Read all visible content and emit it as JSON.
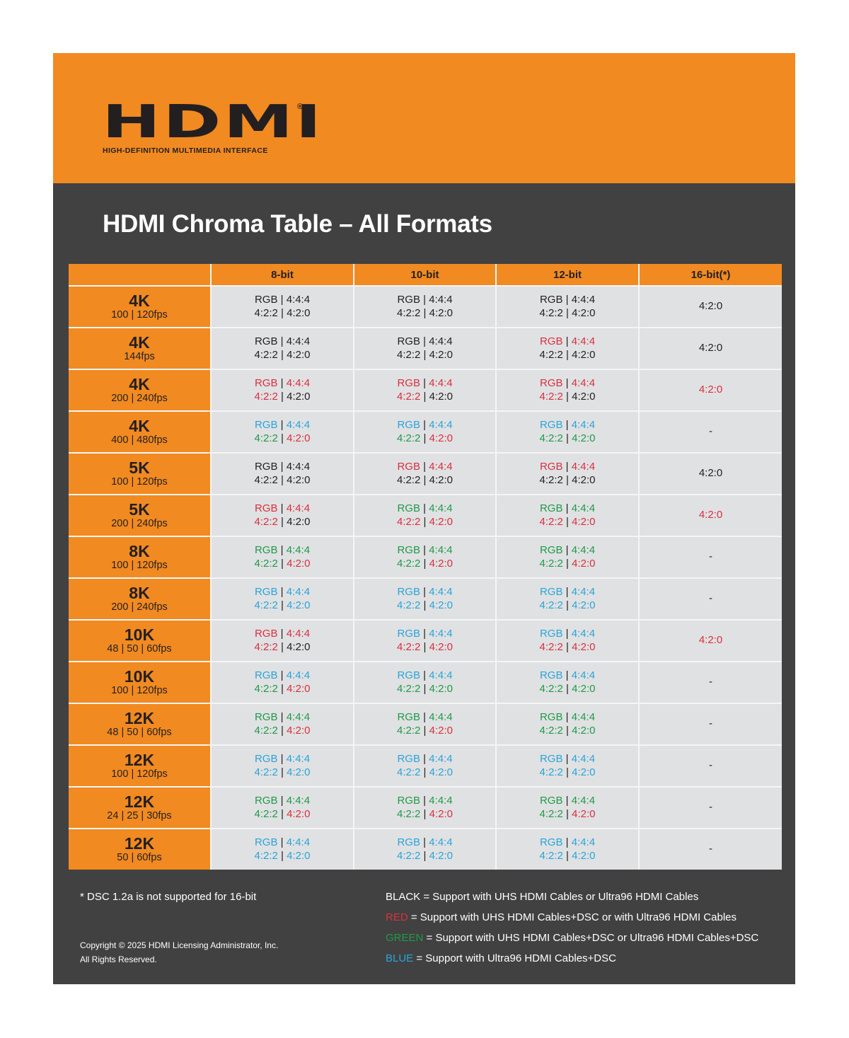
{
  "brand": {
    "logo_text": "HDMI",
    "registered_mark": "®",
    "tagline": "HIGH-DEFINITION MULTIMEDIA INTERFACE",
    "color": "#f18a21"
  },
  "title": "HDMI Chroma Table – All Formats",
  "colors": {
    "black": "#231f20",
    "red": "#d9303e",
    "green": "#1f9a48",
    "blue": "#2aa4d8",
    "orange": "#f18a21",
    "panel": "#414141",
    "cell": "#e0e1e3"
  },
  "table": {
    "headers": [
      "",
      "8-bit",
      "10-bit",
      "12-bit",
      "16-bit(*)"
    ],
    "labels": {
      "rgb": "RGB",
      "c444": "4:4:4",
      "c422": "4:2:2",
      "c420": "4:2:0",
      "sep": "|"
    },
    "rows": [
      {
        "res": "4K",
        "fps": "100 | 120fps",
        "b8": [
          "black",
          "black",
          "black",
          "black"
        ],
        "b10": [
          "black",
          "black",
          "black",
          "black"
        ],
        "b12": [
          "black",
          "black",
          "black",
          "black"
        ],
        "b16": {
          "text": "4:2:0",
          "color": "black"
        }
      },
      {
        "res": "4K",
        "fps": "144fps",
        "b8": [
          "black",
          "black",
          "black",
          "black"
        ],
        "b10": [
          "black",
          "black",
          "black",
          "black"
        ],
        "b12": [
          "red",
          "red",
          "black",
          "black"
        ],
        "b16": {
          "text": "4:2:0",
          "color": "black"
        }
      },
      {
        "res": "4K",
        "fps": "200 | 240fps",
        "b8": [
          "red",
          "red",
          "red",
          "black"
        ],
        "b10": [
          "red",
          "red",
          "red",
          "black"
        ],
        "b12": [
          "red",
          "red",
          "red",
          "black"
        ],
        "b16": {
          "text": "4:2:0",
          "color": "red"
        }
      },
      {
        "res": "4K",
        "fps": "400 | 480fps",
        "b8": [
          "blue",
          "blue",
          "green",
          "red"
        ],
        "b10": [
          "blue",
          "blue",
          "green",
          "red"
        ],
        "b12": [
          "blue",
          "blue",
          "green",
          "green"
        ],
        "b16": {
          "text": "-",
          "color": "black"
        }
      },
      {
        "res": "5K",
        "fps": "100 | 120fps",
        "b8": [
          "black",
          "black",
          "black",
          "black"
        ],
        "b10": [
          "red",
          "red",
          "black",
          "black"
        ],
        "b12": [
          "red",
          "red",
          "black",
          "black"
        ],
        "b16": {
          "text": "4:2:0",
          "color": "black"
        }
      },
      {
        "res": "5K",
        "fps": "200 | 240fps",
        "b8": [
          "red",
          "red",
          "red",
          "black"
        ],
        "b10": [
          "green",
          "green",
          "red",
          "red"
        ],
        "b12": [
          "green",
          "green",
          "red",
          "red"
        ],
        "b16": {
          "text": "4:2:0",
          "color": "red"
        }
      },
      {
        "res": "8K",
        "fps": "100 | 120fps",
        "b8": [
          "green",
          "green",
          "green",
          "red"
        ],
        "b10": [
          "green",
          "green",
          "green",
          "red"
        ],
        "b12": [
          "green",
          "green",
          "green",
          "red"
        ],
        "b16": {
          "text": "-",
          "color": "black"
        }
      },
      {
        "res": "8K",
        "fps": "200 | 240fps",
        "b8": [
          "blue",
          "blue",
          "blue",
          "blue"
        ],
        "b10": [
          "blue",
          "blue",
          "blue",
          "blue"
        ],
        "b12": [
          "blue",
          "blue",
          "blue",
          "blue"
        ],
        "b16": {
          "text": "-",
          "color": "black"
        }
      },
      {
        "res": "10K",
        "fps": "48 | 50 | 60fps",
        "b8": [
          "red",
          "red",
          "red",
          "black"
        ],
        "b10": [
          "blue",
          "blue",
          "red",
          "red"
        ],
        "b12": [
          "blue",
          "blue",
          "red",
          "red"
        ],
        "b16": {
          "text": "4:2:0",
          "color": "red"
        }
      },
      {
        "res": "10K",
        "fps": "100 | 120fps",
        "b8": [
          "blue",
          "blue",
          "green",
          "red"
        ],
        "b10": [
          "blue",
          "blue",
          "green",
          "green"
        ],
        "b12": [
          "blue",
          "blue",
          "green",
          "green"
        ],
        "b16": {
          "text": "-",
          "color": "black"
        }
      },
      {
        "res": "12K",
        "fps": "48 | 50 | 60fps",
        "b8": [
          "green",
          "green",
          "green",
          "red"
        ],
        "b10": [
          "green",
          "green",
          "green",
          "red"
        ],
        "b12": [
          "green",
          "green",
          "green",
          "green"
        ],
        "b16": {
          "text": "-",
          "color": "black"
        }
      },
      {
        "res": "12K",
        "fps": "100 | 120fps",
        "b8": [
          "blue",
          "blue",
          "blue",
          "blue"
        ],
        "b10": [
          "blue",
          "blue",
          "blue",
          "blue"
        ],
        "b12": [
          "blue",
          "blue",
          "blue",
          "blue"
        ],
        "b16": {
          "text": "-",
          "color": "black"
        }
      },
      {
        "res": "12K",
        "fps": "24 | 25 | 30fps",
        "b8": [
          "green",
          "green",
          "green",
          "red"
        ],
        "b10": [
          "green",
          "green",
          "green",
          "red"
        ],
        "b12": [
          "green",
          "green",
          "green",
          "red"
        ],
        "b16": {
          "text": "-",
          "color": "black"
        }
      },
      {
        "res": "12K",
        "fps": "50 | 60fps",
        "b8": [
          "blue",
          "blue",
          "blue",
          "blue"
        ],
        "b10": [
          "blue",
          "blue",
          "blue",
          "blue"
        ],
        "b12": [
          "blue",
          "blue",
          "blue",
          "blue"
        ],
        "b16": {
          "text": "-",
          "color": "black"
        }
      }
    ]
  },
  "footer": {
    "note": "* DSC 1.2a is not supported for 16-bit",
    "copyright_line1": "Copyright © 2025 HDMI Licensing Administrator, Inc.",
    "copyright_line2": "All Rights Reserved.",
    "legend": [
      {
        "key": "BLACK",
        "color": "black",
        "text": " = Support with UHS HDMI Cables or Ultra96 HDMI Cables"
      },
      {
        "key": "RED",
        "color": "red",
        "text": " = Support with UHS HDMI Cables+DSC or with Ultra96 HDMI Cables"
      },
      {
        "key": "GREEN",
        "color": "green",
        "text": " = Support with UHS HDMI Cables+DSC or Ultra96 HDMI Cables+DSC"
      },
      {
        "key": "BLUE",
        "color": "blue",
        "text": " = Support with Ultra96 HDMI Cables+DSC"
      }
    ]
  }
}
